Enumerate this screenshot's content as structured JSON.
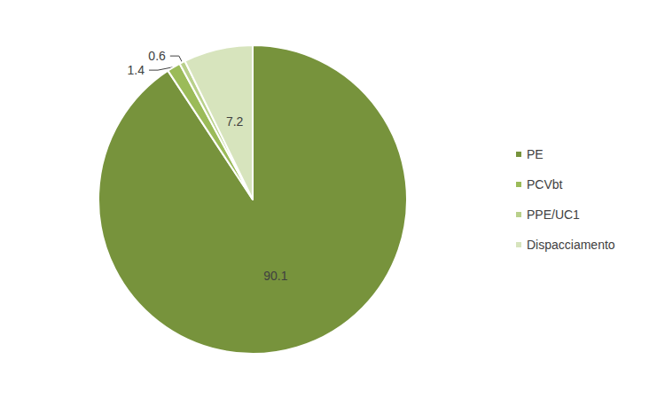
{
  "chart_data": {
    "type": "pie",
    "categories": [
      "PE",
      "PCVbt",
      "PPE/UC1",
      "Dispacciamento"
    ],
    "values": [
      90.1,
      1.4,
      0.6,
      7.2
    ],
    "colors": [
      "#77933c",
      "#9bbb59",
      "#b9d08b",
      "#d7e4bd"
    ],
    "data_labels": true,
    "legend": "right"
  }
}
